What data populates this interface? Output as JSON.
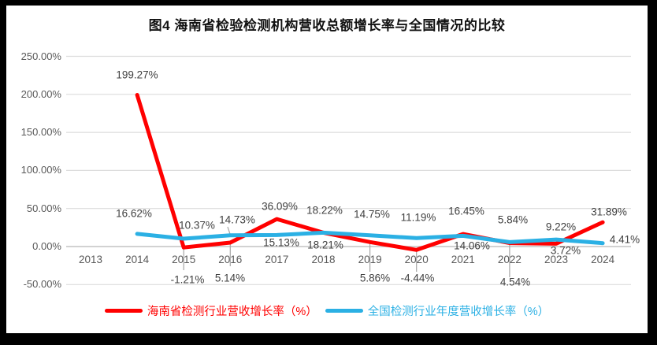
{
  "figure": {
    "title": "图4  海南省检验检测机构营收总额增长率与全国情况的比较"
  },
  "chart_data": {
    "type": "line",
    "title": "图4  海南省检验检测机构营收总额增长率与全国情况的比较",
    "categories": [
      "2013",
      "2014",
      "2015",
      "2016",
      "2017",
      "2018",
      "2019",
      "2020",
      "2021",
      "2022",
      "2023",
      "2024"
    ],
    "ylim": [
      -50,
      250
    ],
    "grid": "horizontal",
    "legend_position": "bottom",
    "y_ticks": [
      {
        "value": 250,
        "label": "250.00%"
      },
      {
        "value": 200,
        "label": "200.00%"
      },
      {
        "value": 150,
        "label": "150.00%"
      },
      {
        "value": 100,
        "label": "100.00%"
      },
      {
        "value": 50,
        "label": "50.00%"
      },
      {
        "value": 0,
        "label": "0.00%"
      },
      {
        "value": -50,
        "label": "-50.00%"
      }
    ],
    "series": [
      {
        "name": "海南省检测行业营收增长率（%）",
        "color": "#FF0000",
        "points": [
          {
            "category": "2014",
            "value": 199.27,
            "label": "199.27%"
          },
          {
            "category": "2015",
            "value": -1.21,
            "label": "-1.21%"
          },
          {
            "category": "2016",
            "value": 5.14,
            "label": "5.14%"
          },
          {
            "category": "2017",
            "value": 36.09,
            "label": "36.09%"
          },
          {
            "category": "2018",
            "value": 18.22,
            "label": "18.22%"
          },
          {
            "category": "2019",
            "value": 5.86,
            "label": "5.86%"
          },
          {
            "category": "2020",
            "value": -4.44,
            "label": "-4.44%"
          },
          {
            "category": "2021",
            "value": 16.45,
            "label": "16.45%"
          },
          {
            "category": "2022",
            "value": 4.54,
            "label": "4.54%"
          },
          {
            "category": "2023",
            "value": 3.72,
            "label": "3.72%"
          },
          {
            "category": "2024",
            "value": 31.89,
            "label": "31.89%"
          }
        ]
      },
      {
        "name": "全国检测行业年度营收增长率（%）",
        "color": "#2BB0E4",
        "points": [
          {
            "category": "2014",
            "value": 16.62,
            "label": "16.62%"
          },
          {
            "category": "2015",
            "value": 10.37,
            "label": "10.37%"
          },
          {
            "category": "2016",
            "value": 14.73,
            "label": "14.73%"
          },
          {
            "category": "2017",
            "value": 15.13,
            "label": "15.13%"
          },
          {
            "category": "2018",
            "value": 18.21,
            "label": "18.21%"
          },
          {
            "category": "2019",
            "value": 14.75,
            "label": "14.75%"
          },
          {
            "category": "2020",
            "value": 11.19,
            "label": "11.19%"
          },
          {
            "category": "2021",
            "value": 14.06,
            "label": "14.06%"
          },
          {
            "category": "2022",
            "value": 5.84,
            "label": "5.84%"
          },
          {
            "category": "2023",
            "value": 9.22,
            "label": "9.22%"
          },
          {
            "category": "2024",
            "value": 4.41,
            "label": "4.41%"
          }
        ]
      }
    ]
  }
}
